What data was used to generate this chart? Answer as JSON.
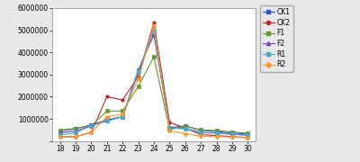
{
  "x": [
    18,
    19,
    20,
    21,
    22,
    23,
    24,
    25,
    26,
    27,
    28,
    29,
    30
  ],
  "series": {
    "CK1": [
      450000,
      540000,
      730000,
      950000,
      1100000,
      3200000,
      4800000,
      600000,
      680000,
      480000,
      430000,
      360000,
      310000
    ],
    "CK2": [
      190000,
      195000,
      390000,
      2000000,
      1850000,
      2900000,
      5350000,
      840000,
      580000,
      290000,
      240000,
      195000,
      155000
    ],
    "F1": [
      490000,
      570000,
      690000,
      1350000,
      1350000,
      2450000,
      3800000,
      510000,
      670000,
      500000,
      470000,
      410000,
      345000
    ],
    "F2": [
      370000,
      440000,
      690000,
      900000,
      1100000,
      3100000,
      5050000,
      580000,
      570000,
      390000,
      370000,
      310000,
      260000
    ],
    "R1": [
      270000,
      370000,
      690000,
      900000,
      1100000,
      3150000,
      5000000,
      580000,
      550000,
      370000,
      350000,
      295000,
      255000
    ],
    "R2": [
      185000,
      190000,
      375000,
      1100000,
      1200000,
      2800000,
      5200000,
      460000,
      325000,
      215000,
      195000,
      175000,
      145000
    ]
  },
  "colors": {
    "CK1": "#3355CC",
    "CK2": "#CC2222",
    "F1": "#669933",
    "F2": "#7744BB",
    "R1": "#44AACC",
    "R2": "#FF9922"
  },
  "markers": {
    "CK1": "s",
    "CK2": "o",
    "F1": "s",
    "F2": "^",
    "R1": "s",
    "R2": "D"
  },
  "ylim": [
    0,
    6000000
  ],
  "yticks": [
    0,
    1000000,
    2000000,
    3000000,
    4000000,
    5000000,
    6000000
  ],
  "figure_bg": "#e8e8e8",
  "plot_bg": "#ffffff"
}
